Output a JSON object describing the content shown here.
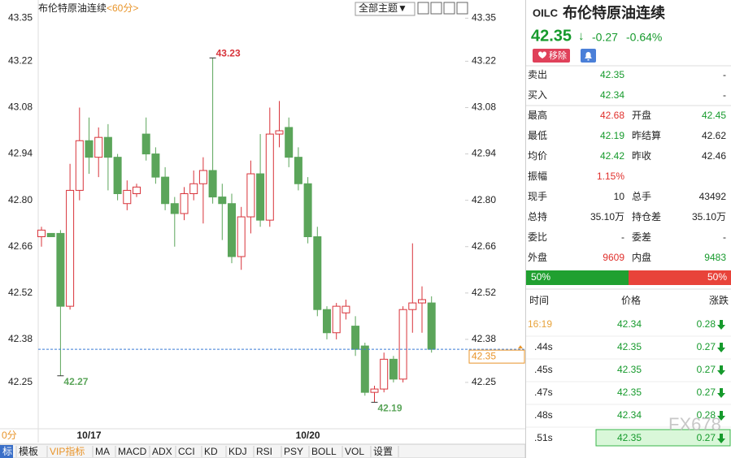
{
  "chart_data": {
    "type": "candlestick",
    "title": "布伦特原油连续",
    "subtitle": "<60分>",
    "period_tab": "0分",
    "categories": [
      null,
      null,
      null,
      null,
      null,
      "10/17",
      null,
      null,
      null,
      null,
      null,
      null,
      null,
      null,
      null,
      null,
      null,
      null,
      null,
      null,
      null,
      null,
      null,
      null,
      null,
      null,
      null,
      null,
      "10/20",
      null,
      null,
      null,
      null,
      null,
      null,
      null,
      null,
      null,
      null,
      null,
      null,
      null
    ],
    "open": [
      42.69,
      42.7,
      42.7,
      42.48,
      42.83,
      42.98,
      42.93,
      42.99,
      42.93,
      42.79,
      42.82,
      43.0,
      42.94,
      42.87,
      42.79,
      42.76,
      42.82,
      42.85,
      42.89,
      42.81,
      42.79,
      42.63,
      42.75,
      42.88,
      42.74,
      43.0,
      43.02,
      42.93,
      42.85,
      42.69,
      42.47,
      42.4,
      42.46,
      42.42,
      42.36,
      42.22,
      42.23,
      42.32,
      42.26,
      42.47,
      42.49,
      42.49
    ],
    "high": [
      42.72,
      42.7,
      42.71,
      42.91,
      43.08,
      43.05,
      43.02,
      43.03,
      42.94,
      42.86,
      42.85,
      43.05,
      42.96,
      42.9,
      42.81,
      42.84,
      42.89,
      42.93,
      43.23,
      42.85,
      42.82,
      42.78,
      42.92,
      43.0,
      43.08,
      43.1,
      43.05,
      42.96,
      42.87,
      42.72,
      42.48,
      42.49,
      42.5,
      42.45,
      42.37,
      42.24,
      42.34,
      42.33,
      42.48,
      42.67,
      42.54,
      42.51
    ],
    "low": [
      42.66,
      42.69,
      42.27,
      42.47,
      42.8,
      42.88,
      42.87,
      42.83,
      42.8,
      42.77,
      42.81,
      42.92,
      42.85,
      42.77,
      42.66,
      42.74,
      42.8,
      42.73,
      42.79,
      42.68,
      42.61,
      42.59,
      42.7,
      42.72,
      42.72,
      42.96,
      42.9,
      42.83,
      42.67,
      42.45,
      42.38,
      42.38,
      42.44,
      42.33,
      42.21,
      42.19,
      42.22,
      42.25,
      42.25,
      42.4,
      42.4,
      42.34
    ],
    "close": [
      42.71,
      42.69,
      42.48,
      42.83,
      42.98,
      42.93,
      42.99,
      42.93,
      42.82,
      42.83,
      42.84,
      42.94,
      42.87,
      42.79,
      42.76,
      42.82,
      42.85,
      42.89,
      42.81,
      42.79,
      42.63,
      42.75,
      42.88,
      42.74,
      43.0,
      43.01,
      42.93,
      42.85,
      42.69,
      42.47,
      42.4,
      42.48,
      42.48,
      42.35,
      42.22,
      42.23,
      42.32,
      42.26,
      42.47,
      42.49,
      42.5,
      42.35
    ],
    "up_color": "#d8333a",
    "down_color": "#5ba55a",
    "ylim": [
      42.11,
      43.4
    ],
    "yticks": [
      42.25,
      {
        "value": 42.38,
        "label": "42.38"
      },
      42.52,
      42.66,
      {
        "value": 42.8,
        "label": "42.80"
      },
      42.94,
      {
        "value": 43.08,
        "label": "43.08"
      },
      43.22,
      43.35
    ],
    "grid": false,
    "annotations": [
      {
        "value": 43.23,
        "label": "43.23"
      },
      {
        "value": 42.27,
        "label": "42.27"
      },
      {
        "value": 42.19,
        "label": "42.19"
      }
    ],
    "last": {
      "value": 42.35,
      "label": "42.35"
    }
  },
  "toolbar": {
    "theme_button": "全部主题▼"
  },
  "tabs": [
    "标",
    "模板",
    "VIP指标",
    "MA",
    "MACD",
    "ADX",
    "CCI",
    "KD",
    "KDJ",
    "RSI",
    "PSY",
    "BOLL",
    "VOL",
    "设置"
  ],
  "quote": {
    "code": "OILC",
    "name": "布伦特原油连续",
    "price": "42.35",
    "arrow": "↓",
    "change": "-0.27",
    "pct": "-0.64%",
    "remove": "移除"
  },
  "rows": [
    [
      "卖出",
      {
        "text": "42.35",
        "color": "#169a2c"
      },
      "",
      {
        "text": "-",
        "color": "#222"
      }
    ],
    [
      "买入",
      {
        "text": "42.34",
        "color": "#169a2c"
      },
      "",
      {
        "text": "-",
        "color": "#222"
      }
    ],
    [
      "最高",
      {
        "text": "42.68",
        "color": "#e0302c"
      },
      "开盘",
      {
        "text": "42.45",
        "color": "#169a2c"
      }
    ],
    [
      "最低",
      {
        "text": "42.19",
        "color": "#169a2c"
      },
      "昨结算",
      {
        "text": "42.62",
        "color": "#222"
      }
    ],
    [
      "均价",
      {
        "text": "42.42",
        "color": "#169a2c"
      },
      "昨收",
      {
        "text": "42.46",
        "color": "#222"
      }
    ],
    [
      "振幅",
      {
        "text": "1.15%",
        "color": "#e0302c"
      }
    ],
    [
      "现手",
      {
        "text": "10",
        "color": "#222"
      },
      "总手",
      {
        "text": "43492",
        "color": "#222"
      }
    ],
    [
      "总持",
      {
        "text": "35.10万",
        "color": "#222"
      },
      "持仓差",
      {
        "text": "35.10万",
        "color": "#222"
      }
    ],
    [
      "委比",
      {
        "text": "-",
        "color": "#222"
      },
      "委差",
      {
        "text": "-",
        "color": "#222"
      }
    ],
    [
      "外盘",
      {
        "text": "9609",
        "color": "#e0302c"
      },
      "内盘",
      {
        "text": "9483",
        "color": "#169a2c"
      }
    ]
  ],
  "ratio": {
    "buy": "50%",
    "sell": "50%"
  },
  "trades_header": [
    "时间",
    "价格",
    "涨跌"
  ],
  "trades": [
    {
      "time": "16:19",
      "price": "42.34",
      "change": "0.28"
    },
    {
      "time": ".44s",
      "price": "42.35",
      "change": "0.27"
    },
    {
      "time": ".45s",
      "price": "42.35",
      "change": "0.27"
    },
    {
      "time": ".47s",
      "price": "42.35",
      "change": "0.27"
    },
    {
      "time": ".48s",
      "price": "42.34",
      "change": "0.28"
    },
    {
      "time": ".51s",
      "price": "42.35",
      "change": "0.27"
    }
  ],
  "watermark": "FX678"
}
